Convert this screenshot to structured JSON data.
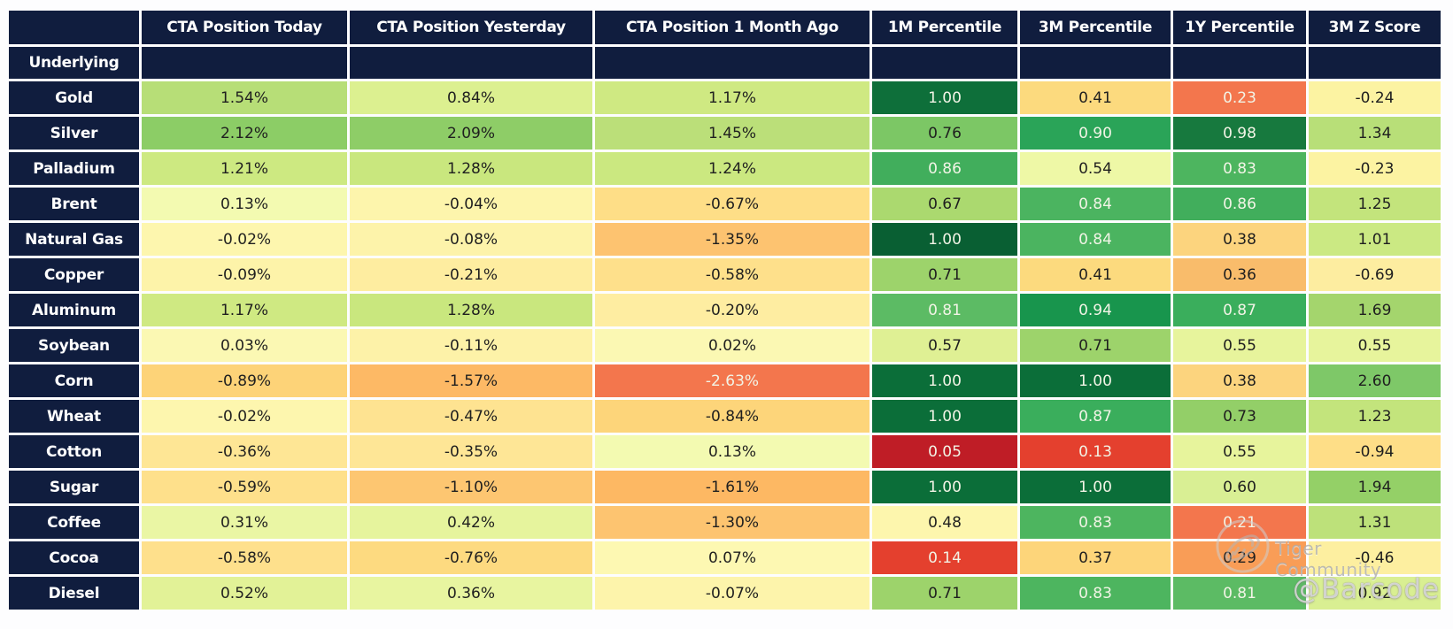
{
  "chart_data": {
    "type": "table",
    "columns": [
      "",
      "CTA Position Today",
      "CTA Position Yesterday",
      "CTA Position 1 Month Ago",
      "1M Percentile",
      "3M Percentile",
      "1Y Percentile",
      "3M Z Score"
    ],
    "row_header_label": "Underlying",
    "rows": [
      {
        "label": "Gold",
        "cells": [
          {
            "v": "1.54%",
            "bg": "#b7de77"
          },
          {
            "v": "0.84%",
            "bg": "#dcf090"
          },
          {
            "v": "1.17%",
            "bg": "#cfe982"
          },
          {
            "v": "1.00",
            "bg": "#0e6f3a",
            "lt": true
          },
          {
            "v": "0.41",
            "bg": "#fcda7e"
          },
          {
            "v": "0.23",
            "bg": "#f3764d",
            "lt": true
          },
          {
            "v": "-0.24",
            "bg": "#fcf3a2"
          }
        ]
      },
      {
        "label": "Silver",
        "cells": [
          {
            "v": "2.12%",
            "bg": "#8ccd66"
          },
          {
            "v": "2.09%",
            "bg": "#8ecd67"
          },
          {
            "v": "1.45%",
            "bg": "#bbdf79"
          },
          {
            "v": "0.76",
            "bg": "#7cc765"
          },
          {
            "v": "0.90",
            "bg": "#2aa458",
            "lt": true
          },
          {
            "v": "0.98",
            "bg": "#17793e",
            "lt": true
          },
          {
            "v": "1.34",
            "bg": "#b8df78"
          }
        ]
      },
      {
        "label": "Palladium",
        "cells": [
          {
            "v": "1.21%",
            "bg": "#cde981"
          },
          {
            "v": "1.28%",
            "bg": "#c9e77e"
          },
          {
            "v": "1.24%",
            "bg": "#cbe880"
          },
          {
            "v": "0.86",
            "bg": "#41ae5c",
            "lt": true
          },
          {
            "v": "0.54",
            "bg": "#eef8a6"
          },
          {
            "v": "0.83",
            "bg": "#4db55f",
            "lt": true
          },
          {
            "v": "-0.23",
            "bg": "#fcf3a2"
          }
        ]
      },
      {
        "label": "Brent",
        "cells": [
          {
            "v": "0.13%",
            "bg": "#f3fab1"
          },
          {
            "v": "-0.04%",
            "bg": "#fdf5ac"
          },
          {
            "v": "-0.67%",
            "bg": "#fede87"
          },
          {
            "v": "0.67",
            "bg": "#abd96f"
          },
          {
            "v": "0.84",
            "bg": "#4bb460",
            "lt": true
          },
          {
            "v": "0.86",
            "bg": "#41ae5c",
            "lt": true
          },
          {
            "v": "1.25",
            "bg": "#c3e47c"
          }
        ]
      },
      {
        "label": "Natural Gas",
        "cells": [
          {
            "v": "-0.02%",
            "bg": "#fdf6ae"
          },
          {
            "v": "-0.08%",
            "bg": "#fdf3aa"
          },
          {
            "v": "-1.35%",
            "bg": "#fdc370"
          },
          {
            "v": "1.00",
            "bg": "#095f33",
            "lt": true
          },
          {
            "v": "0.84",
            "bg": "#4bb460",
            "lt": true
          },
          {
            "v": "0.38",
            "bg": "#fcd47e"
          },
          {
            "v": "1.01",
            "bg": "#cbe983"
          }
        ]
      },
      {
        "label": "Copper",
        "cells": [
          {
            "v": "-0.09%",
            "bg": "#fdf3a9"
          },
          {
            "v": "-0.21%",
            "bg": "#feeda0"
          },
          {
            "v": "-0.58%",
            "bg": "#fee08b"
          },
          {
            "v": "0.71",
            "bg": "#9dd36b"
          },
          {
            "v": "0.41",
            "bg": "#fcda7e"
          },
          {
            "v": "0.36",
            "bg": "#f9bc6b"
          },
          {
            "v": "-0.69",
            "bg": "#fdeda0"
          }
        ]
      },
      {
        "label": "Aluminum",
        "cells": [
          {
            "v": "1.17%",
            "bg": "#cfe982"
          },
          {
            "v": "1.28%",
            "bg": "#c9e77e"
          },
          {
            "v": "-0.20%",
            "bg": "#feeda1"
          },
          {
            "v": "0.81",
            "bg": "#5cbb64",
            "lt": true
          },
          {
            "v": "0.94",
            "bg": "#18954d",
            "lt": true
          },
          {
            "v": "0.87",
            "bg": "#3aae5c",
            "lt": true
          },
          {
            "v": "1.69",
            "bg": "#a4d56d"
          }
        ]
      },
      {
        "label": "Soybean",
        "cells": [
          {
            "v": "0.03%",
            "bg": "#fbf8b3"
          },
          {
            "v": "-0.11%",
            "bg": "#fdf2a8"
          },
          {
            "v": "0.02%",
            "bg": "#fbf8b3"
          },
          {
            "v": "0.57",
            "bg": "#dff094"
          },
          {
            "v": "0.71",
            "bg": "#9dd36b"
          },
          {
            "v": "0.55",
            "bg": "#e7f49c"
          },
          {
            "v": "0.55",
            "bg": "#e7f49c"
          }
        ]
      },
      {
        "label": "Corn",
        "cells": [
          {
            "v": "-0.89%",
            "bg": "#fdd378"
          },
          {
            "v": "-1.57%",
            "bg": "#fdb965"
          },
          {
            "v": "-2.63%",
            "bg": "#f3764d",
            "lt": true
          },
          {
            "v": "1.00",
            "bg": "#0b6e39",
            "lt": true
          },
          {
            "v": "1.00",
            "bg": "#0b6e39",
            "lt": true
          },
          {
            "v": "0.38",
            "bg": "#fcd47e"
          },
          {
            "v": "2.60",
            "bg": "#7ec868"
          }
        ]
      },
      {
        "label": "Wheat",
        "cells": [
          {
            "v": "-0.02%",
            "bg": "#fdf6ae"
          },
          {
            "v": "-0.47%",
            "bg": "#fee391"
          },
          {
            "v": "-0.84%",
            "bg": "#fdd57a"
          },
          {
            "v": "1.00",
            "bg": "#0b6e39",
            "lt": true
          },
          {
            "v": "0.87",
            "bg": "#3aae5c",
            "lt": true
          },
          {
            "v": "0.73",
            "bg": "#93cf68"
          },
          {
            "v": "1.23",
            "bg": "#c3e47c"
          }
        ]
      },
      {
        "label": "Cotton",
        "cells": [
          {
            "v": "-0.36%",
            "bg": "#fee695"
          },
          {
            "v": "-0.35%",
            "bg": "#fee696"
          },
          {
            "v": "0.13%",
            "bg": "#f3fab1"
          },
          {
            "v": "0.05",
            "bg": "#bf1d26",
            "lt": true
          },
          {
            "v": "0.13",
            "bg": "#e4402e",
            "lt": true
          },
          {
            "v": "0.55",
            "bg": "#e7f49c"
          },
          {
            "v": "-0.94",
            "bg": "#fede87"
          }
        ]
      },
      {
        "label": "Sugar",
        "cells": [
          {
            "v": "-0.59%",
            "bg": "#fee08b"
          },
          {
            "v": "-1.10%",
            "bg": "#fdc671"
          },
          {
            "v": "-1.61%",
            "bg": "#fdb863"
          },
          {
            "v": "1.00",
            "bg": "#0b6e39",
            "lt": true
          },
          {
            "v": "1.00",
            "bg": "#0b6e39",
            "lt": true
          },
          {
            "v": "0.60",
            "bg": "#d9ef94"
          },
          {
            "v": "1.94",
            "bg": "#94d067"
          }
        ]
      },
      {
        "label": "Coffee",
        "cells": [
          {
            "v": "0.31%",
            "bg": "#eaf6a4"
          },
          {
            "v": "0.42%",
            "bg": "#e6f49d"
          },
          {
            "v": "-1.30%",
            "bg": "#fdc470"
          },
          {
            "v": "0.48",
            "bg": "#fdf6ad"
          },
          {
            "v": "0.83",
            "bg": "#4db55f",
            "lt": true
          },
          {
            "v": "0.21",
            "bg": "#f3764d",
            "lt": true
          },
          {
            "v": "1.31",
            "bg": "#bde17a"
          }
        ]
      },
      {
        "label": "Cocoa",
        "cells": [
          {
            "v": "-0.58%",
            "bg": "#fee08c"
          },
          {
            "v": "-0.76%",
            "bg": "#fdda80"
          },
          {
            "v": "0.07%",
            "bg": "#fdf8b2"
          },
          {
            "v": "0.14",
            "bg": "#e4402e",
            "lt": true
          },
          {
            "v": "0.37",
            "bg": "#fdd57a"
          },
          {
            "v": "0.29",
            "bg": "#f99d57"
          },
          {
            "v": "-0.46",
            "bg": "#fdefa0"
          }
        ]
      },
      {
        "label": "Diesel",
        "cells": [
          {
            "v": "0.52%",
            "bg": "#e2f297"
          },
          {
            "v": "0.36%",
            "bg": "#e8f5a0"
          },
          {
            "v": "-0.07%",
            "bg": "#fdf4ab"
          },
          {
            "v": "0.71",
            "bg": "#9dd36b"
          },
          {
            "v": "0.83",
            "bg": "#4db55f",
            "lt": true
          },
          {
            "v": "0.81",
            "bg": "#5cbb64",
            "lt": true
          },
          {
            "v": "0.92",
            "bg": "#d9ef92"
          }
        ]
      }
    ]
  },
  "watermark": {
    "community_label": "Tiger Community",
    "handle": "@Barcode"
  },
  "colors": {
    "header_bg": "#101d3e",
    "header_text": "#ffffff",
    "cell_text_dark": "#1f1f1f",
    "cell_text_light": "#f2f4e6",
    "page_bg": "#fdfdfe",
    "watermark_gray": "#aaaaaa"
  }
}
